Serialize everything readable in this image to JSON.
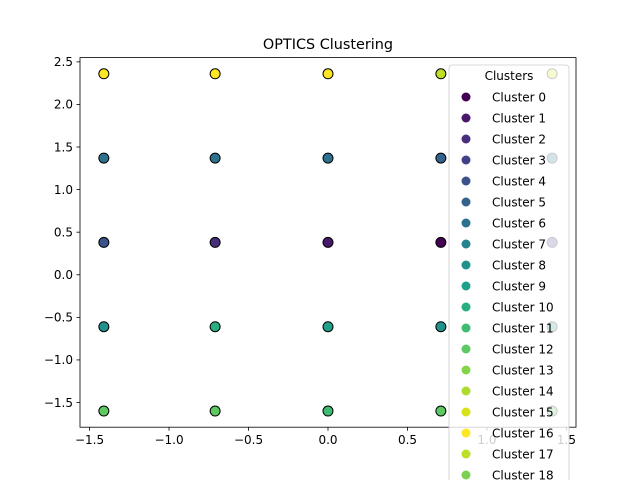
{
  "chart_data": {
    "type": "scatter",
    "title": "OPTICS Clustering",
    "xlabel": "",
    "ylabel": "",
    "xlim": [
      -1.56,
      1.56
    ],
    "ylim": [
      -1.79,
      2.55
    ],
    "x_ticks": [
      -1.5,
      -1.0,
      -0.5,
      0.0,
      0.5,
      1.0,
      1.5
    ],
    "x_tick_labels": [
      "−1.5",
      "−1.0",
      "−0.5",
      "0.0",
      "0.5",
      "1.0",
      "1.5"
    ],
    "y_ticks": [
      -1.5,
      -1.0,
      -0.5,
      0.0,
      0.5,
      1.0,
      1.5,
      2.0,
      2.5
    ],
    "y_tick_labels": [
      "−1.5",
      "−1.0",
      "−0.5",
      "0.0",
      "0.5",
      "1.0",
      "1.5",
      "2.0",
      "2.5"
    ],
    "grid": false,
    "legend": {
      "title": "Clusters",
      "placement": "top-right",
      "entries": [
        {
          "label": "Cluster 0",
          "color": "#440154"
        },
        {
          "label": "Cluster 1",
          "color": "#48186a"
        },
        {
          "label": "Cluster 2",
          "color": "#472d7b"
        },
        {
          "label": "Cluster 3",
          "color": "#424086"
        },
        {
          "label": "Cluster 4",
          "color": "#3b528b"
        },
        {
          "label": "Cluster 5",
          "color": "#33638d"
        },
        {
          "label": "Cluster 6",
          "color": "#2c728e"
        },
        {
          "label": "Cluster 7",
          "color": "#26828e"
        },
        {
          "label": "Cluster 8",
          "color": "#21918c"
        },
        {
          "label": "Cluster 9",
          "color": "#1fa088"
        },
        {
          "label": "Cluster 10",
          "color": "#28ae80"
        },
        {
          "label": "Cluster 11",
          "color": "#3fbc73"
        },
        {
          "label": "Cluster 12",
          "color": "#5ec962"
        },
        {
          "label": "Cluster 13",
          "color": "#84d44b"
        },
        {
          "label": "Cluster 14",
          "color": "#addc30"
        },
        {
          "label": "Cluster 15",
          "color": "#d8e219"
        },
        {
          "label": "Cluster 16",
          "color": "#fde725"
        },
        {
          "label": "Cluster 17",
          "color": "#bddf26"
        },
        {
          "label": "Cluster 18",
          "color": "#7ad151"
        }
      ]
    },
    "points": [
      {
        "x": -1.41,
        "y": 2.36,
        "color": "#fde725"
      },
      {
        "x": -0.71,
        "y": 2.36,
        "color": "#fde725"
      },
      {
        "x": 0.0,
        "y": 2.36,
        "color": "#fde725"
      },
      {
        "x": 0.71,
        "y": 2.36,
        "color": "#bddf26"
      },
      {
        "x": 1.41,
        "y": 2.36,
        "color": "#d8e219"
      },
      {
        "x": -1.41,
        "y": 1.37,
        "color": "#2c728e"
      },
      {
        "x": -0.71,
        "y": 1.37,
        "color": "#2c728e"
      },
      {
        "x": 0.0,
        "y": 1.37,
        "color": "#2c728e"
      },
      {
        "x": 0.71,
        "y": 1.37,
        "color": "#33638d"
      },
      {
        "x": 1.41,
        "y": 1.37,
        "color": "#2c728e"
      },
      {
        "x": -1.41,
        "y": 0.38,
        "color": "#3b528b"
      },
      {
        "x": -0.71,
        "y": 0.38,
        "color": "#472d7b"
      },
      {
        "x": 0.0,
        "y": 0.38,
        "color": "#48186a"
      },
      {
        "x": 0.71,
        "y": 0.38,
        "color": "#440154"
      },
      {
        "x": 1.41,
        "y": 0.38,
        "color": "#424086"
      },
      {
        "x": -1.41,
        "y": -0.61,
        "color": "#21918c"
      },
      {
        "x": -0.71,
        "y": -0.61,
        "color": "#28ae80"
      },
      {
        "x": 0.0,
        "y": -0.61,
        "color": "#1fa088"
      },
      {
        "x": 0.71,
        "y": -0.61,
        "color": "#21918c"
      },
      {
        "x": 1.41,
        "y": -0.61,
        "color": "#21918c"
      },
      {
        "x": -1.41,
        "y": -1.6,
        "color": "#5ec962"
      },
      {
        "x": -0.71,
        "y": -1.6,
        "color": "#5ec962"
      },
      {
        "x": 0.0,
        "y": -1.6,
        "color": "#3fbc73"
      },
      {
        "x": 0.71,
        "y": -1.6,
        "color": "#5ec962"
      },
      {
        "x": 1.41,
        "y": -1.6,
        "color": "#5ec962"
      }
    ]
  }
}
